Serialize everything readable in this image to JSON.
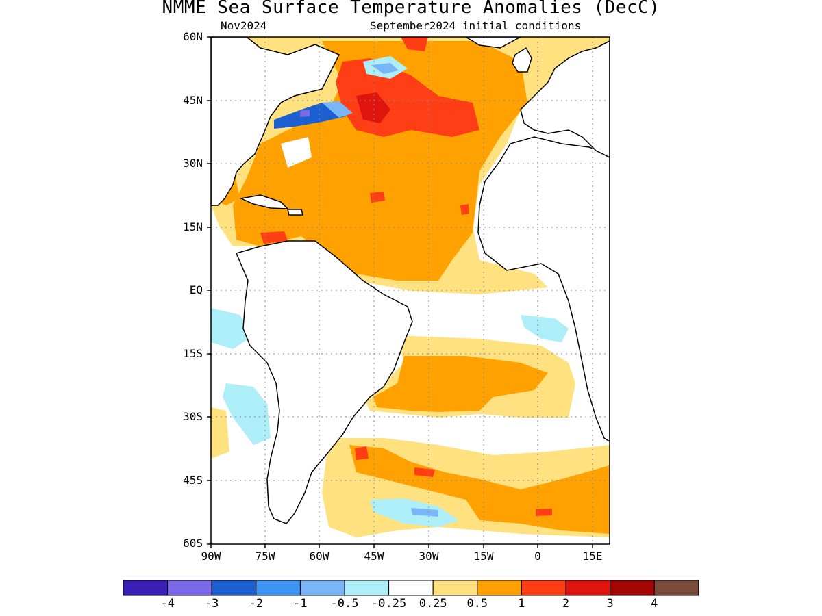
{
  "title": "NMME Sea Surface Temperature Anomalies (DecC)",
  "valid_label": "Nov2024",
  "init_label": "September2024 initial conditions",
  "lat_labels": [
    "60N",
    "45N",
    "30N",
    "15N",
    "EQ",
    "15S",
    "30S",
    "45S",
    "60S"
  ],
  "lon_labels": [
    "90W",
    "75W",
    "60W",
    "45W",
    "30W",
    "15W",
    "0",
    "15E"
  ],
  "colorbar": {
    "colors": [
      "#3a1fb5",
      "#7b6ae8",
      "#1b5fd0",
      "#3f95f4",
      "#7ab5f8",
      "#aeeef8",
      "#ffffff",
      "#ffe27f",
      "#ffa100",
      "#ff3e16",
      "#e0140f",
      "#a30505",
      "#7a4a3a"
    ],
    "labels": [
      "-4",
      "-3",
      "-2",
      "-1",
      "-0.5",
      "-0.25",
      "0.25",
      "0.5",
      "1",
      "2",
      "3",
      "4"
    ]
  },
  "land_color": "#ffffff",
  "grid": true
}
